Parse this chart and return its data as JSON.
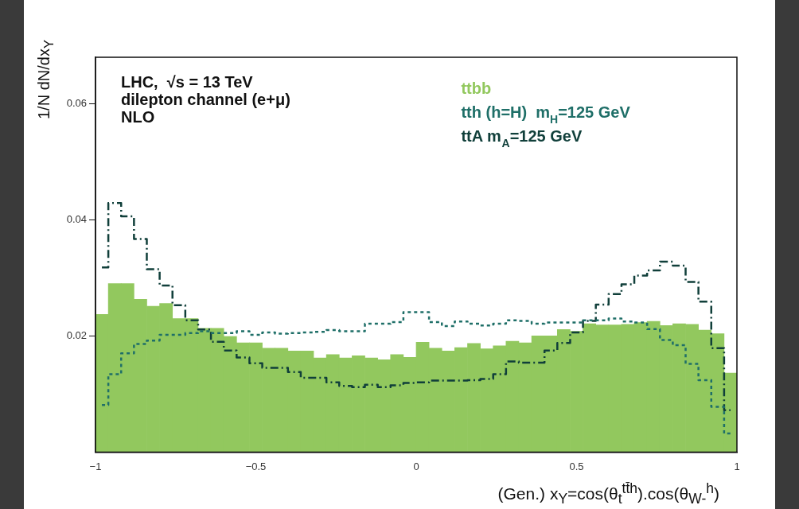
{
  "chart_data": {
    "type": "histogram",
    "xlabel": "(Gen.)   x$_{Y}$=cos(θ$_{t}$$^{tt̄h}$).cos(θ$_{W-}$$^{h}$)",
    "ylabel": "1/N dN/dx$_{Y}$",
    "annotations": [
      "LHC,  √s = 13 TeV",
      "dilepton channel (e+μ)",
      "NLO"
    ],
    "bins": [
      -1,
      -0.96,
      -0.92,
      -0.88,
      -0.84,
      -0.8,
      -0.76,
      -0.72,
      -0.68,
      -0.64,
      -0.6,
      -0.56,
      -0.52,
      -0.48,
      -0.44,
      -0.4,
      -0.36,
      -0.32,
      -0.28,
      -0.24,
      -0.2,
      -0.16,
      -0.12,
      -0.08,
      -0.04,
      0,
      0.04,
      0.08,
      0.12,
      0.16,
      0.2,
      0.24,
      0.28,
      0.32,
      0.36,
      0.4,
      0.44,
      0.48,
      0.52,
      0.56,
      0.6,
      0.64,
      0.68,
      0.72,
      0.76,
      0.8,
      0.84,
      0.88,
      0.92,
      0.96,
      1
    ],
    "series": [
      {
        "name": "ttbb",
        "type": "histogram",
        "color": "#92c85e",
        "values": [
          0.0237,
          0.029,
          0.029,
          0.0263,
          0.0251,
          0.0256,
          0.023,
          0.023,
          0.0213,
          0.0213,
          0.0199,
          0.0188,
          0.0188,
          0.0179,
          0.0179,
          0.0174,
          0.0174,
          0.0162,
          0.0168,
          0.0162,
          0.0166,
          0.0162,
          0.0159,
          0.0168,
          0.0163,
          0.0189,
          0.0179,
          0.0174,
          0.018,
          0.0187,
          0.0178,
          0.0183,
          0.0191,
          0.0188,
          0.02,
          0.02,
          0.0211,
          0.0208,
          0.0221,
          0.0219,
          0.0219,
          0.022,
          0.0223,
          0.0225,
          0.0218,
          0.0221,
          0.022,
          0.021,
          0.0204,
          0.0136
        ]
      },
      {
        "name": "tth (h=H)  m$_{H}$=125 GeV",
        "type": "step",
        "line_style": "dotted",
        "color": "#1f6f68",
        "x": [
          -0.98,
          -0.94,
          -0.9,
          -0.86,
          -0.82,
          -0.78,
          -0.74,
          -0.7,
          -0.66,
          -0.62,
          -0.58,
          -0.54,
          -0.5,
          -0.46,
          -0.42,
          -0.38,
          -0.34,
          -0.3,
          -0.26,
          -0.22,
          -0.18,
          -0.14,
          -0.1,
          -0.06,
          -0.02,
          0.02,
          0.06,
          0.1,
          0.14,
          0.18,
          0.22,
          0.26,
          0.3,
          0.34,
          0.38,
          0.42,
          0.46,
          0.5,
          0.54,
          0.58,
          0.62,
          0.66,
          0.7,
          0.74,
          0.78,
          0.82,
          0.86,
          0.9,
          0.94,
          0.98
        ],
        "values": [
          0.0081,
          0.0134,
          0.017,
          0.0186,
          0.0192,
          0.0202,
          0.0202,
          0.0205,
          0.0208,
          0.0205,
          0.0205,
          0.0208,
          0.0202,
          0.0206,
          0.0204,
          0.0205,
          0.0206,
          0.0207,
          0.021,
          0.0208,
          0.0208,
          0.0221,
          0.0221,
          0.0224,
          0.0241,
          0.0241,
          0.0224,
          0.0217,
          0.0225,
          0.0221,
          0.0218,
          0.0221,
          0.0227,
          0.0226,
          0.0221,
          0.0223,
          0.0223,
          0.0223,
          0.0227,
          0.0227,
          0.023,
          0.0225,
          0.0223,
          0.0212,
          0.0193,
          0.0184,
          0.0152,
          0.0124,
          0.0078,
          0.0032
        ]
      },
      {
        "name": "ttA m$_{A}$=125 GeV",
        "type": "step",
        "line_style": "dashed",
        "color": "#103f3a",
        "x": [
          -0.98,
          -0.94,
          -0.9,
          -0.86,
          -0.82,
          -0.78,
          -0.74,
          -0.7,
          -0.66,
          -0.62,
          -0.58,
          -0.54,
          -0.5,
          -0.46,
          -0.42,
          -0.38,
          -0.34,
          -0.3,
          -0.26,
          -0.22,
          -0.18,
          -0.14,
          -0.1,
          -0.06,
          -0.02,
          0.02,
          0.06,
          0.1,
          0.14,
          0.18,
          0.22,
          0.26,
          0.3,
          0.34,
          0.38,
          0.42,
          0.46,
          0.5,
          0.54,
          0.58,
          0.62,
          0.66,
          0.7,
          0.74,
          0.78,
          0.82,
          0.86,
          0.9,
          0.94,
          0.98
        ],
        "values": [
          0.0318,
          0.0429,
          0.0406,
          0.0367,
          0.0315,
          0.0287,
          0.0253,
          0.0227,
          0.0211,
          0.019,
          0.0175,
          0.0163,
          0.0153,
          0.0145,
          0.0145,
          0.0138,
          0.0128,
          0.0128,
          0.012,
          0.0114,
          0.0112,
          0.0116,
          0.0112,
          0.0115,
          0.0119,
          0.012,
          0.0123,
          0.0123,
          0.0123,
          0.0124,
          0.0126,
          0.0134,
          0.0156,
          0.0154,
          0.0154,
          0.0175,
          0.0188,
          0.0206,
          0.0226,
          0.0254,
          0.0272,
          0.0289,
          0.0304,
          0.0313,
          0.0328,
          0.0321,
          0.0293,
          0.0259,
          0.0179,
          0.0072
        ]
      }
    ],
    "xlim": [
      -1,
      1
    ],
    "xticks": [
      {
        "value": -1,
        "label": "−1"
      },
      {
        "value": -0.5,
        "label": "−0.5"
      },
      0,
      0.5,
      1
    ],
    "ylim": [
      0,
      0.068
    ],
    "yticks": [
      0.02,
      0.04,
      0.06
    ],
    "legend": "top right"
  }
}
